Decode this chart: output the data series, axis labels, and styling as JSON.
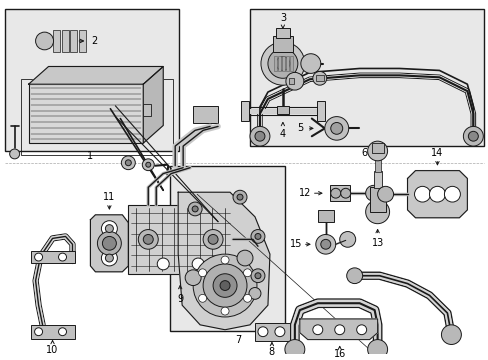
{
  "bg_color": "#ffffff",
  "box_fill": "#e8e8e8",
  "line_color": "#1a1a1a",
  "text_color": "#000000",
  "fig_width": 4.89,
  "fig_height": 3.6,
  "dpi": 100
}
